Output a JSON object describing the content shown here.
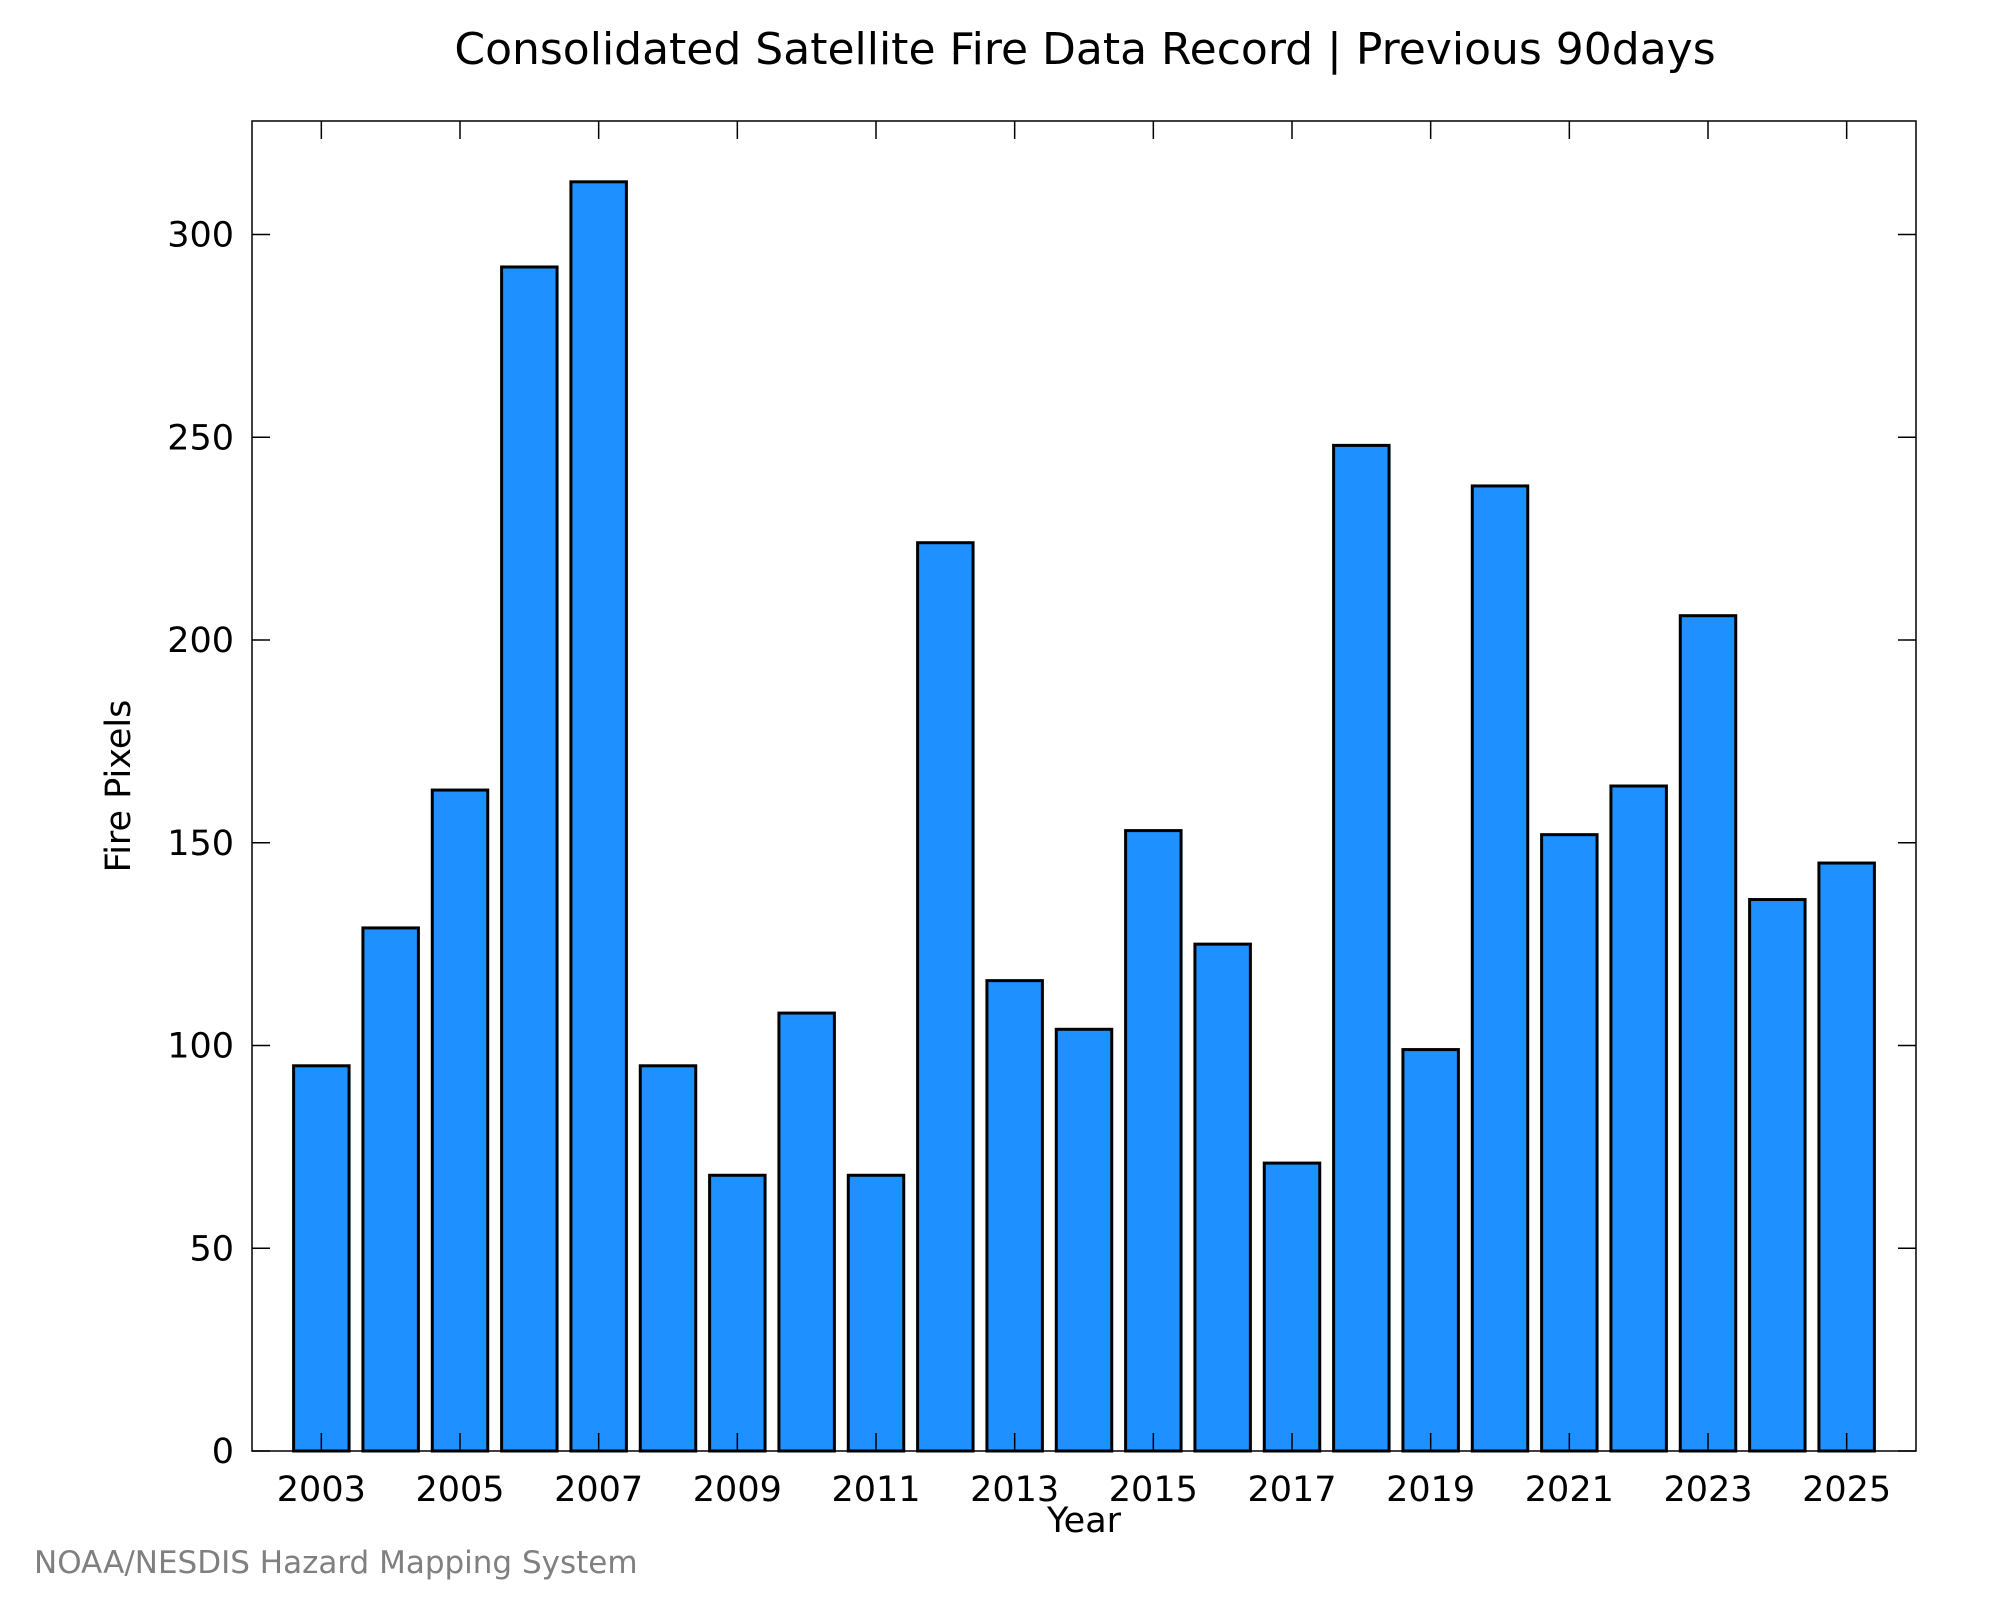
{
  "chart_data": {
    "type": "bar",
    "title": "Consolidated Satellite Fire Data Record | Previous 90days",
    "xlabel": "Year",
    "ylabel": "Fire Pixels",
    "categories": [
      "2003",
      "2004",
      "2005",
      "2006",
      "2007",
      "2008",
      "2009",
      "2010",
      "2011",
      "2012",
      "2013",
      "2014",
      "2015",
      "2016",
      "2017",
      "2018",
      "2019",
      "2020",
      "2021",
      "2022",
      "2023",
      "2024",
      "2025"
    ],
    "values": [
      95,
      129,
      163,
      292,
      313,
      95,
      68,
      108,
      68,
      224,
      116,
      104,
      153,
      125,
      71,
      248,
      99,
      238,
      152,
      164,
      206,
      136,
      145
    ],
    "x_tick_labels": [
      "2003",
      "2005",
      "2007",
      "2009",
      "2011",
      "2013",
      "2015",
      "2017",
      "2019",
      "2021",
      "2023",
      "2025"
    ],
    "y_ticks": [
      0,
      50,
      100,
      150,
      200,
      250,
      300
    ],
    "ylim": [
      0,
      328
    ],
    "grid": false,
    "bar_color": "#1e90ff",
    "bar_edge_color": "#000000"
  },
  "credit": "NOAA/NESDIS Hazard Mapping System"
}
